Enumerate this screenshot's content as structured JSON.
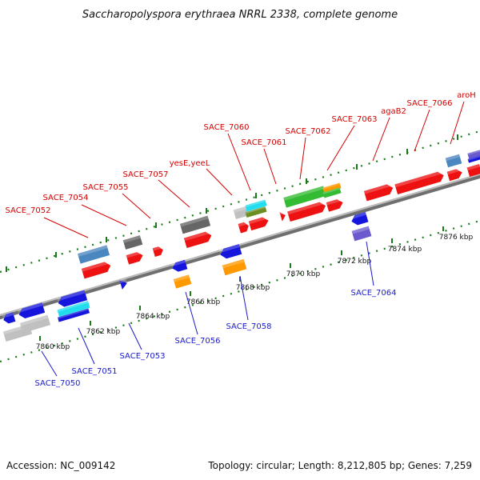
{
  "title": "Saccharopolyspora erythraea NRRL 2338, complete genome",
  "footer": {
    "accession": "Accession: NC_009142",
    "summary": "Topology: circular; Length: 8,212,805 bp; Genes: 7,259"
  },
  "scale_ticks": [
    "7860 kbp",
    "7862 kbp",
    "7864 kbp",
    "7866 kbp",
    "7868 kbp",
    "7870 kbp",
    "7872 kbp",
    "7874 kbp",
    "7876 kbp"
  ],
  "forward_gene_labels": [
    "SACE_7052",
    "SACE_7054",
    "SACE_7055",
    "SACE_7057",
    "yesE,yeeL",
    "SACE_7060",
    "SACE_7061",
    "SACE_7062",
    "SACE_7063",
    "agaB2",
    "SACE_7066",
    "aroH"
  ],
  "reverse_gene_labels": [
    "SACE_7050",
    "SACE_7051",
    "SACE_7053",
    "SACE_7056",
    "SACE_7058",
    "SACE_7064"
  ],
  "colors": {
    "forward_label": "#d40000",
    "reverse_label": "#1a1acc",
    "cds_red": "#ee1111",
    "cds_blue": "#1515dd",
    "cds_green": "#33bb33",
    "cds_orange": "#ff9900",
    "cds_steelblue": "#4a86c0",
    "cds_gray": "#666666",
    "cds_lightgray": "#c0c0c0",
    "cds_cyan": "#22ddee",
    "cds_purple": "#6a5acd",
    "cds_olive": "#6b8e23",
    "backbone": "#888888",
    "track_dots": "#1a7a1a"
  }
}
